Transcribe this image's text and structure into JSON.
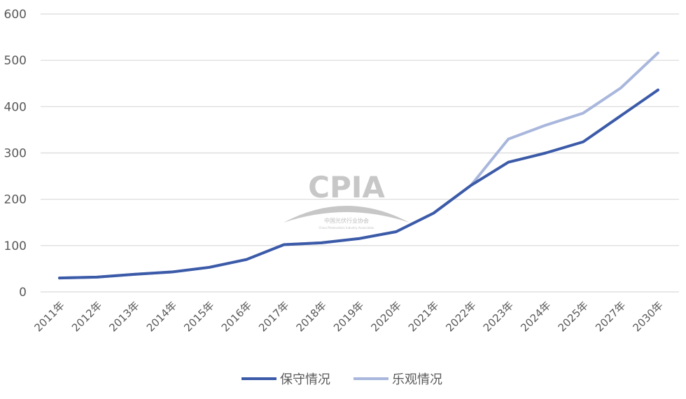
{
  "chart_data": {
    "type": "line",
    "title": "",
    "xlabel": "",
    "ylabel": "",
    "ylim": [
      0,
      600
    ],
    "yticks": [
      0,
      100,
      200,
      300,
      400,
      500,
      600
    ],
    "grid": true,
    "legend_position": "bottom",
    "categories": [
      "2011年",
      "2012年",
      "2013年",
      "2014年",
      "2015年",
      "2016年",
      "2017年",
      "2018年",
      "2019年",
      "2020年",
      "2021年",
      "2022年",
      "2023年",
      "2024年",
      "2025年",
      "2027年",
      "2030年"
    ],
    "series": [
      {
        "name": "保守情况",
        "color": "#3b5aa8",
        "values": [
          30,
          32,
          38,
          43,
          53,
          70,
          102,
          106,
          115,
          130,
          170,
          230,
          280,
          300,
          324,
          380,
          436
        ]
      },
      {
        "name": "乐观情况",
        "color": "#a9b7dd",
        "values": [
          30,
          32,
          38,
          43,
          53,
          70,
          102,
          106,
          115,
          130,
          170,
          230,
          330,
          360,
          386,
          440,
          516
        ]
      }
    ]
  },
  "watermark": {
    "logo": "CPIA",
    "name_cn": "中国光伏行业协会",
    "name_en": "China Photovoltaic Industry Association"
  }
}
